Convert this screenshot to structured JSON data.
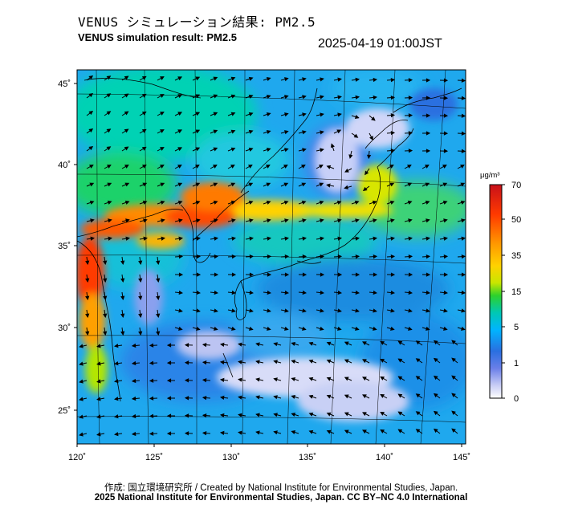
{
  "header": {
    "title_jp": "VENUS シミュレーション結果: PM2.5",
    "title_en": "VENUS simulation result: PM2.5",
    "timestamp": "2025-04-19 01:00JST"
  },
  "map": {
    "lon_ticks": [
      "120˚",
      "125˚",
      "130˚",
      "135˚",
      "140˚",
      "145˚"
    ],
    "lat_ticks": [
      "45˚",
      "40˚",
      "35˚",
      "30˚",
      "25˚"
    ]
  },
  "colorbar": {
    "unit": "μg/m³",
    "labels": [
      "70",
      "50",
      "35",
      "15",
      "5",
      "1",
      "0"
    ],
    "colors": [
      "#d2151a",
      "#ff4a00",
      "#ff9a00",
      "#ffd200",
      "#c8e600",
      "#2cd12c",
      "#00c8b4",
      "#00b4ff",
      "#2a6fe0",
      "#6a7fe8",
      "#c8cdf5",
      "#ffffff"
    ]
  },
  "footer": {
    "credit_jp": "作成: 国立環境研究所 / Created by National Institute for Environmental Studies, Japan.",
    "copyright": "2025 National Institute for Environmental Studies, Japan. CC BY–NC 4.0 International"
  }
}
